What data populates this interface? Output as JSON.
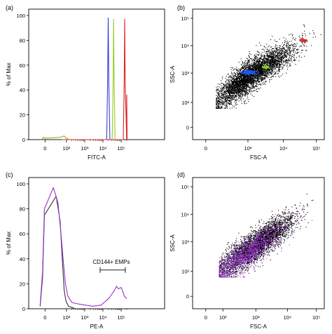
{
  "chart_data": [
    {
      "panel": "(a)",
      "type": "line",
      "xlabel": "FITC-A",
      "ylabel": "% of Max",
      "xscale": "biexponential",
      "ylim": [
        0,
        100
      ],
      "xticks": [
        "0",
        "10²",
        "10³",
        "10⁴",
        "10⁵"
      ],
      "yticks": [
        "0",
        "20",
        "40",
        "60",
        "80",
        "100"
      ],
      "series": [
        {
          "color": "#3344cc",
          "x": [
            40,
            16000,
            18000,
            19500,
            21000,
            24000
          ],
          "y": [
            0,
            0,
            45,
            98,
            45,
            0
          ]
        },
        {
          "color": "#99cc22",
          "x": [
            40,
            32000,
            36000,
            38500,
            41000,
            46000
          ],
          "y": [
            0,
            0,
            45,
            97,
            45,
            0
          ]
        },
        {
          "color": "#dd2222",
          "x": [
            40,
            130000,
            145000,
            155000,
            165000,
            200000,
            200000,
            210000
          ],
          "y": [
            0,
            0,
            45,
            97,
            45,
            0,
            36,
            0
          ]
        },
        {
          "color": "#88aa22",
          "x": [
            -30,
            -10,
            0,
            30,
            60,
            100,
            150
          ],
          "y": [
            0,
            2,
            1,
            2,
            3,
            1,
            0
          ]
        }
      ]
    },
    {
      "panel": "(b)",
      "type": "scatter",
      "xlabel": "FSC-A",
      "ylabel": "SSC-A",
      "xscale": "log",
      "yscale": "log",
      "xticks": [
        "0",
        "10³",
        "10⁴",
        "10⁵"
      ],
      "yticks": [
        "0",
        "10²",
        "10³",
        "10⁴",
        "10⁵"
      ],
      "series": [
        {
          "color": "#000000",
          "center": [
            1200,
            900
          ],
          "points": 4500
        },
        {
          "color": "#2255ee",
          "center": [
            1000,
            1100
          ],
          "points": 260
        },
        {
          "color": "#88dd22",
          "center": [
            3000,
            1700
          ],
          "points": 30
        },
        {
          "color": "#dd2222",
          "center": [
            40000,
            16000
          ],
          "points": 40
        }
      ]
    },
    {
      "panel": "(c)",
      "type": "line",
      "xlabel": "PE-A",
      "ylabel": "% of Max",
      "xscale": "biexponential",
      "ylim": [
        0,
        100
      ],
      "xticks": [
        "0",
        "10²",
        "10³",
        "10⁴",
        "10⁵"
      ],
      "yticks": [
        "0",
        "20",
        "40",
        "60",
        "80",
        "100"
      ],
      "gate": {
        "label": "CD144+ EMPs",
        "x_range": [
          7000,
          200000
        ],
        "y": 31
      },
      "series": [
        {
          "color": "#333333",
          "x": [
            -40,
            -20,
            -5,
            10,
            25,
            40,
            60,
            90,
            130,
            200,
            300
          ],
          "y": [
            2,
            25,
            75,
            90,
            70,
            40,
            15,
            6,
            2,
            1,
            0
          ]
        },
        {
          "color": "#9933cc",
          "x": [
            -40,
            -20,
            -5,
            5,
            15,
            30,
            50,
            80,
            120,
            200,
            400,
            1000,
            3000,
            8000,
            20000,
            40000,
            55000,
            70000,
            100000,
            150000,
            200000
          ],
          "y": [
            3,
            30,
            80,
            97,
            85,
            60,
            38,
            20,
            10,
            5,
            4,
            3,
            2,
            3,
            8,
            14,
            18,
            16,
            17,
            10,
            8
          ]
        }
      ]
    },
    {
      "panel": "(d)",
      "type": "scatter",
      "xlabel": "FSC-A",
      "ylabel": "SSC-A",
      "xscale": "log",
      "yscale": "log",
      "xticks": [
        "0",
        "10²",
        "10³",
        "10⁴",
        "10⁵"
      ],
      "yticks": [
        "0",
        "10²",
        "10³",
        "10⁴",
        "10⁵"
      ],
      "series": [
        {
          "color": "#000000",
          "center": [
            1000,
            800
          ],
          "points": 3500
        },
        {
          "color": "#9933cc",
          "center": [
            500,
            400
          ],
          "points": 1400
        }
      ]
    }
  ]
}
